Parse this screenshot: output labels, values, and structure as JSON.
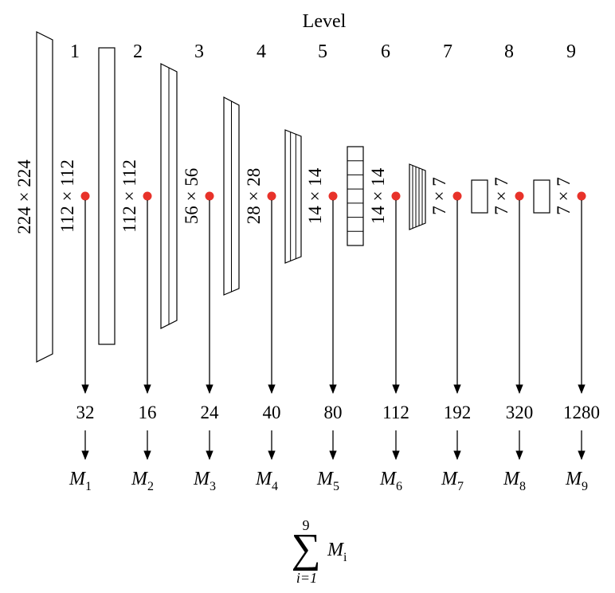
{
  "header": {
    "title": "Level"
  },
  "levels": [
    {
      "number": "1",
      "dims": "112 × 112",
      "channels": "32",
      "output": "M",
      "sub": "1"
    },
    {
      "number": "2",
      "dims": "112 × 112",
      "channels": "16",
      "output": "M",
      "sub": "2"
    },
    {
      "number": "3",
      "dims": "56 × 56",
      "channels": "24",
      "output": "M",
      "sub": "3"
    },
    {
      "number": "4",
      "dims": "28 × 28",
      "channels": "40",
      "output": "M",
      "sub": "4"
    },
    {
      "number": "5",
      "dims": "14 × 14",
      "channels": "80",
      "output": "M",
      "sub": "5"
    },
    {
      "number": "6",
      "dims": "14 × 14",
      "channels": "112",
      "output": "M",
      "sub": "6"
    },
    {
      "number": "7",
      "dims": "7 × 7",
      "channels": "192",
      "output": "M",
      "sub": "7"
    },
    {
      "number": "8",
      "dims": "7 × 7",
      "channels": "320",
      "output": "M",
      "sub": "8"
    },
    {
      "number": "9",
      "dims": "7 × 7",
      "channels": "1280",
      "output": "M",
      "sub": "9"
    }
  ],
  "input": {
    "dims": "224 × 224"
  },
  "sum": {
    "upper": "9",
    "symbol": "∑",
    "term": "M",
    "term_sub": "i",
    "lower": "i=1"
  },
  "colors": {
    "tap_point": "#e8322a",
    "stroke": "#000000"
  }
}
